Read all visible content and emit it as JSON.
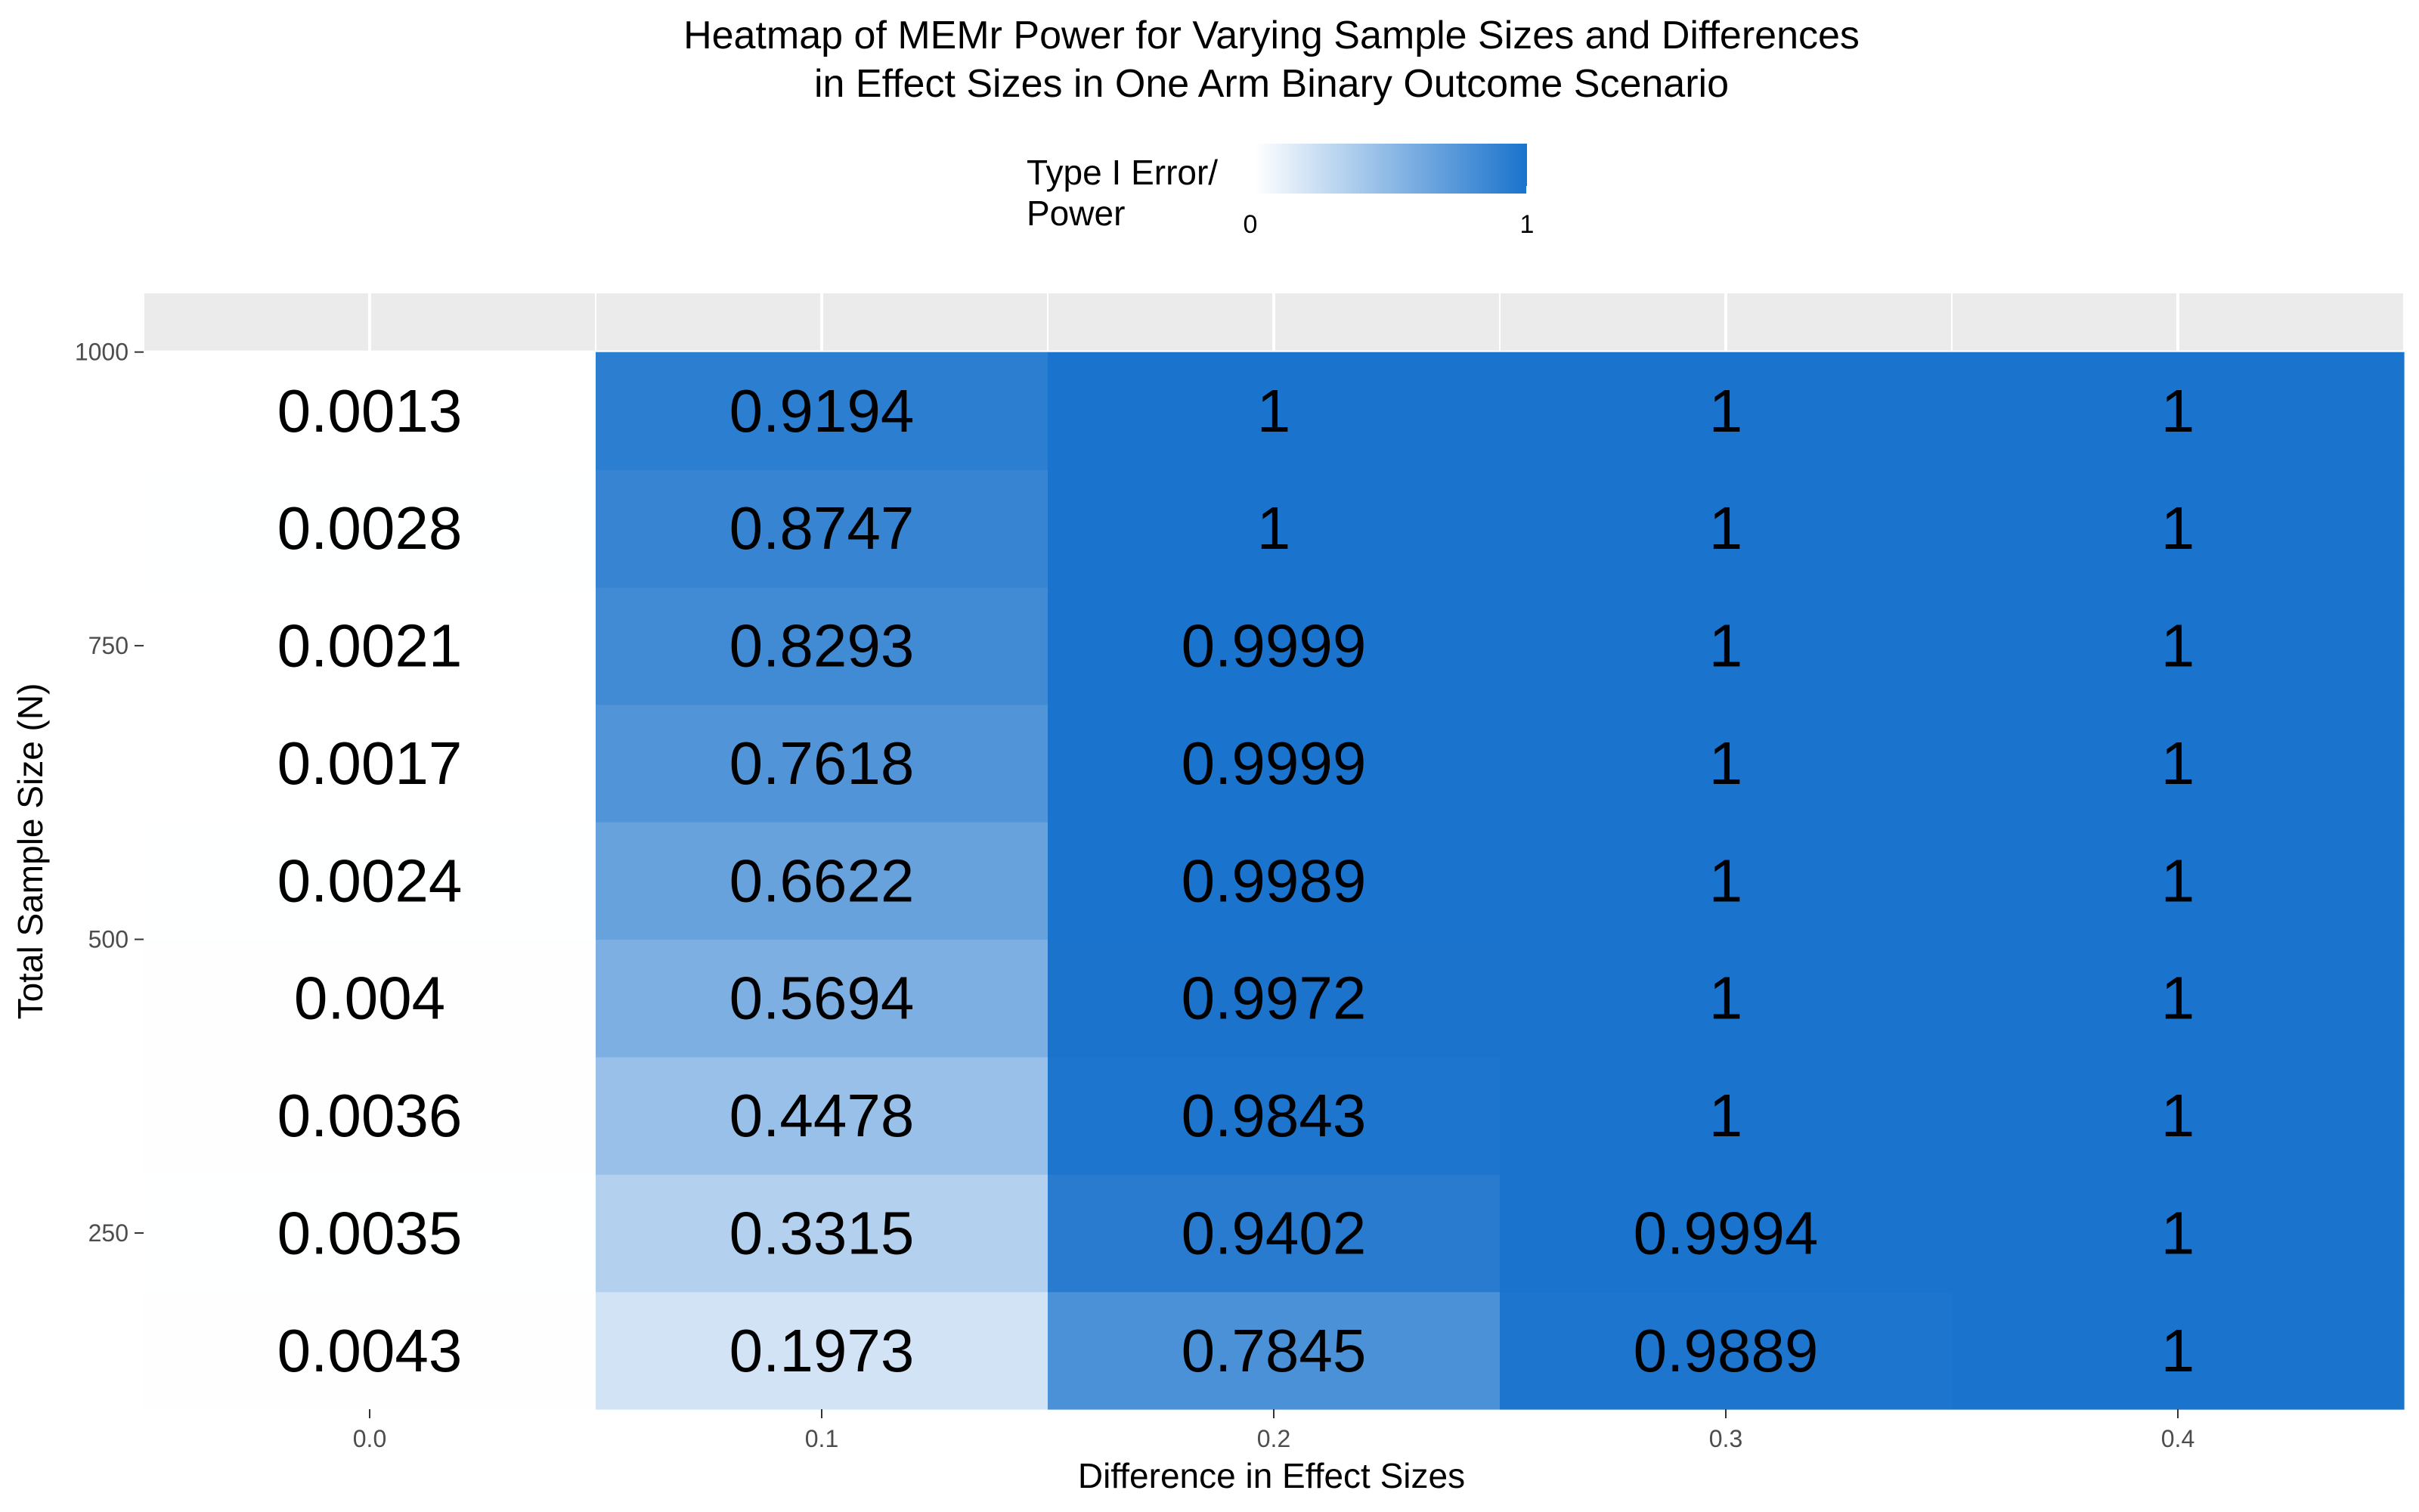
{
  "chart_data": {
    "type": "heatmap",
    "title": [
      "Heatmap of MEMr Power for Varying Sample Sizes and Differences",
      "in Effect Sizes in One Arm Binary Outcome Scenario"
    ],
    "xlabel": "Difference in Effect Sizes",
    "ylabel": "Total Sample Size (N)",
    "x": [
      0.0,
      0.1,
      0.2,
      0.3,
      0.4
    ],
    "x_tick_labels": [
      "0.0",
      "0.1",
      "0.2",
      "0.3",
      "0.4"
    ],
    "y": [
      150,
      250,
      350,
      450,
      550,
      650,
      750,
      850,
      950
    ],
    "xlim": [
      -0.05,
      0.45
    ],
    "ylim": [
      100,
      1050
    ],
    "y_ticks": [
      250,
      500,
      750,
      1000
    ],
    "y_tick_labels": [
      "250",
      "500",
      "750",
      "1000"
    ],
    "values": [
      [
        0.0043,
        0.1973,
        0.7845,
        0.9889,
        1
      ],
      [
        0.0035,
        0.3315,
        0.9402,
        0.9994,
        1
      ],
      [
        0.0036,
        0.4478,
        0.9843,
        1,
        1
      ],
      [
        0.004,
        0.5694,
        0.9972,
        1,
        1
      ],
      [
        0.0024,
        0.6622,
        0.9989,
        1,
        1
      ],
      [
        0.0017,
        0.7618,
        0.9999,
        1,
        1
      ],
      [
        0.0021,
        0.8293,
        0.9999,
        1,
        1
      ],
      [
        0.0028,
        0.8747,
        1,
        1,
        1
      ],
      [
        0.0013,
        0.9194,
        1,
        1,
        1
      ]
    ],
    "legend": {
      "title": [
        "Type I Error/",
        "Power"
      ],
      "min_label": "0",
      "max_label": "1",
      "low_color": "#ffffff",
      "high_color": "#1a73cc",
      "placement": "top"
    },
    "panel_background": "#ebebeb",
    "grid_color": "#ffffff",
    "grid": true
  }
}
